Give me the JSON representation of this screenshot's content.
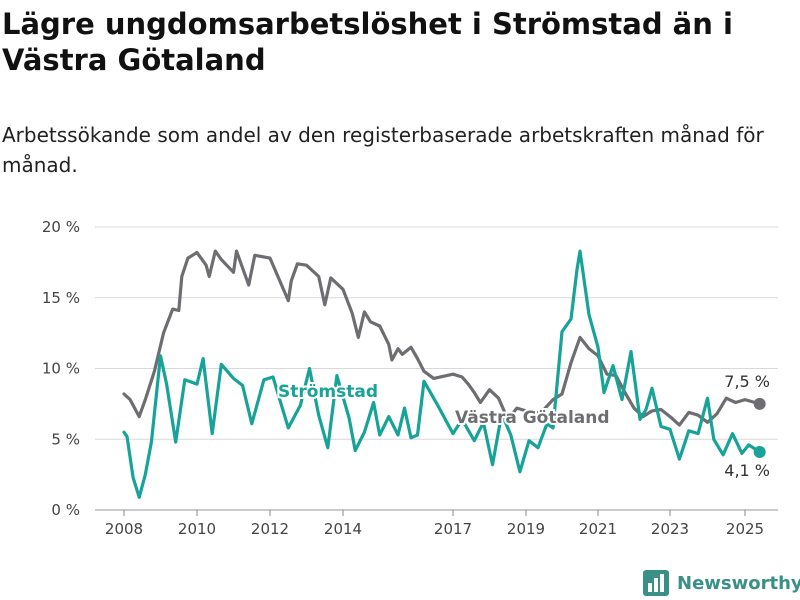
{
  "header": {
    "title": "Lägre ungdomsarbetslöshet i Strömstad än i Västra Götaland",
    "subtitle": "Arbetssökande som andel av den registerbaserade arbetskraften månad för månad."
  },
  "branding": {
    "logo_text": "Newsworthy",
    "logo_icon": "bar-chart-icon",
    "color": "#3a8f86"
  },
  "chart_data": {
    "type": "line",
    "title": "Lägre ungdomsarbetslöshet i Strömstad än i Västra Götaland",
    "subtitle": "Arbetssökande som andel av den registerbaserade arbetskraften månad för månad.",
    "xlabel": "",
    "ylabel": "",
    "x_ticks": [
      "2008",
      "2010",
      "2012",
      "2014",
      "2017",
      "2019",
      "2021",
      "2023",
      "2025"
    ],
    "y_ticks": [
      "0 %",
      "5 %",
      "10 %",
      "15 %",
      "20 %"
    ],
    "ylim": [
      0,
      20
    ],
    "xlim": [
      "2007-10",
      "2025-09"
    ],
    "grid": "horizontal",
    "x_note": "x values are months (YYYY-MM); the axis has an unlabeled gap between 2015 and 2016",
    "series": [
      {
        "name": "Västra Götaland",
        "color": "#6e6e72",
        "end_label": "7,5 %",
        "points": [
          [
            "2008-01",
            8.2
          ],
          [
            "2008-03",
            7.8
          ],
          [
            "2008-06",
            6.6
          ],
          [
            "2008-08",
            7.8
          ],
          [
            "2008-11",
            9.8
          ],
          [
            "2009-02",
            12.5
          ],
          [
            "2009-05",
            14.2
          ],
          [
            "2009-07",
            14.1
          ],
          [
            "2009-08",
            16.5
          ],
          [
            "2009-10",
            17.8
          ],
          [
            "2010-01",
            18.2
          ],
          [
            "2010-04",
            17.3
          ],
          [
            "2010-05",
            16.5
          ],
          [
            "2010-07",
            18.3
          ],
          [
            "2010-09",
            17.7
          ],
          [
            "2011-01",
            16.8
          ],
          [
            "2011-02",
            18.3
          ],
          [
            "2011-06",
            15.9
          ],
          [
            "2011-08",
            18.0
          ],
          [
            "2012-01",
            17.8
          ],
          [
            "2012-07",
            14.8
          ],
          [
            "2012-08",
            16.2
          ],
          [
            "2012-10",
            17.4
          ],
          [
            "2013-01",
            17.3
          ],
          [
            "2013-05",
            16.5
          ],
          [
            "2013-07",
            14.5
          ],
          [
            "2013-09",
            16.4
          ],
          [
            "2014-01",
            15.6
          ],
          [
            "2014-04",
            13.9
          ],
          [
            "2014-06",
            12.2
          ],
          [
            "2014-08",
            14.0
          ],
          [
            "2014-10",
            13.3
          ],
          [
            "2015-01",
            13.0
          ],
          [
            "2015-04",
            11.7
          ],
          [
            "2015-05",
            10.6
          ],
          [
            "2015-07",
            11.4
          ],
          [
            "2015-09",
            11.0
          ],
          [
            "2016-01",
            11.5
          ],
          [
            "2016-04",
            10.7
          ],
          [
            "2016-07",
            9.8
          ],
          [
            "2016-09",
            9.3
          ],
          [
            "2017-01",
            9.6
          ],
          [
            "2017-04",
            9.4
          ],
          [
            "2017-06",
            8.9
          ],
          [
            "2017-08",
            8.3
          ],
          [
            "2017-10",
            7.6
          ],
          [
            "2018-01",
            8.5
          ],
          [
            "2018-04",
            7.9
          ],
          [
            "2018-07",
            6.4
          ],
          [
            "2018-10",
            7.2
          ],
          [
            "2019-01",
            7.0
          ],
          [
            "2019-04",
            6.8
          ],
          [
            "2019-07",
            7.1
          ],
          [
            "2019-10",
            7.8
          ],
          [
            "2020-01",
            8.2
          ],
          [
            "2020-04",
            10.4
          ],
          [
            "2020-07",
            12.2
          ],
          [
            "2020-10",
            11.4
          ],
          [
            "2021-01",
            10.9
          ],
          [
            "2021-04",
            9.6
          ],
          [
            "2021-07",
            9.5
          ],
          [
            "2021-10",
            8.3
          ],
          [
            "2022-01",
            7.2
          ],
          [
            "2022-04",
            6.6
          ],
          [
            "2022-07",
            7.0
          ],
          [
            "2022-10",
            7.1
          ],
          [
            "2023-01",
            6.6
          ],
          [
            "2023-04",
            6.0
          ],
          [
            "2023-07",
            6.9
          ],
          [
            "2023-10",
            6.7
          ],
          [
            "2024-01",
            6.2
          ],
          [
            "2024-04",
            6.8
          ],
          [
            "2024-07",
            7.9
          ],
          [
            "2024-10",
            7.6
          ],
          [
            "2025-01",
            7.8
          ],
          [
            "2025-05",
            7.5
          ]
        ]
      },
      {
        "name": "Strömstad",
        "color": "#17a398",
        "end_label": "4,1 %",
        "points": [
          [
            "2008-01",
            5.5
          ],
          [
            "2008-02",
            5.2
          ],
          [
            "2008-04",
            2.3
          ],
          [
            "2008-06",
            0.9
          ],
          [
            "2008-08",
            2.5
          ],
          [
            "2008-10",
            4.8
          ],
          [
            "2009-01",
            10.9
          ],
          [
            "2009-03",
            8.9
          ],
          [
            "2009-06",
            4.8
          ],
          [
            "2009-09",
            9.2
          ],
          [
            "2010-01",
            8.9
          ],
          [
            "2010-03",
            10.7
          ],
          [
            "2010-06",
            5.4
          ],
          [
            "2010-09",
            10.3
          ],
          [
            "2011-01",
            9.3
          ],
          [
            "2011-04",
            8.8
          ],
          [
            "2011-07",
            6.1
          ],
          [
            "2011-11",
            9.2
          ],
          [
            "2012-02",
            9.4
          ],
          [
            "2012-07",
            5.8
          ],
          [
            "2012-11",
            7.4
          ],
          [
            "2013-02",
            10.0
          ],
          [
            "2013-05",
            6.7
          ],
          [
            "2013-08",
            4.4
          ],
          [
            "2013-11",
            9.5
          ],
          [
            "2014-03",
            6.5
          ],
          [
            "2014-05",
            4.2
          ],
          [
            "2014-08",
            5.5
          ],
          [
            "2014-11",
            7.6
          ],
          [
            "2015-01",
            5.3
          ],
          [
            "2015-04",
            6.6
          ],
          [
            "2015-07",
            5.3
          ],
          [
            "2015-10",
            7.2
          ],
          [
            "2016-01",
            5.1
          ],
          [
            "2016-04",
            5.3
          ],
          [
            "2016-07",
            9.1
          ],
          [
            "2016-10",
            7.3
          ],
          [
            "2017-01",
            5.4
          ],
          [
            "2017-04",
            6.4
          ],
          [
            "2017-08",
            4.9
          ],
          [
            "2017-11",
            6.2
          ],
          [
            "2018-02",
            3.2
          ],
          [
            "2018-05",
            6.8
          ],
          [
            "2018-08",
            5.3
          ],
          [
            "2018-11",
            2.7
          ],
          [
            "2019-02",
            4.9
          ],
          [
            "2019-05",
            4.4
          ],
          [
            "2019-08",
            6.1
          ],
          [
            "2019-10",
            5.8
          ],
          [
            "2020-01",
            12.6
          ],
          [
            "2020-04",
            13.5
          ],
          [
            "2020-06",
            17.0
          ],
          [
            "2020-07",
            18.3
          ],
          [
            "2020-10",
            13.8
          ],
          [
            "2021-01",
            11.5
          ],
          [
            "2021-03",
            8.3
          ],
          [
            "2021-06",
            10.2
          ],
          [
            "2021-09",
            7.8
          ],
          [
            "2021-12",
            11.2
          ],
          [
            "2022-03",
            6.4
          ],
          [
            "2022-05",
            7.1
          ],
          [
            "2022-07",
            8.6
          ],
          [
            "2022-10",
            5.9
          ],
          [
            "2023-01",
            5.7
          ],
          [
            "2023-04",
            3.6
          ],
          [
            "2023-07",
            5.6
          ],
          [
            "2023-10",
            5.4
          ],
          [
            "2024-01",
            7.9
          ],
          [
            "2024-03",
            5.0
          ],
          [
            "2024-06",
            3.9
          ],
          [
            "2024-09",
            5.4
          ],
          [
            "2024-12",
            4.0
          ],
          [
            "2025-02",
            4.6
          ],
          [
            "2025-05",
            4.1
          ]
        ]
      }
    ]
  }
}
